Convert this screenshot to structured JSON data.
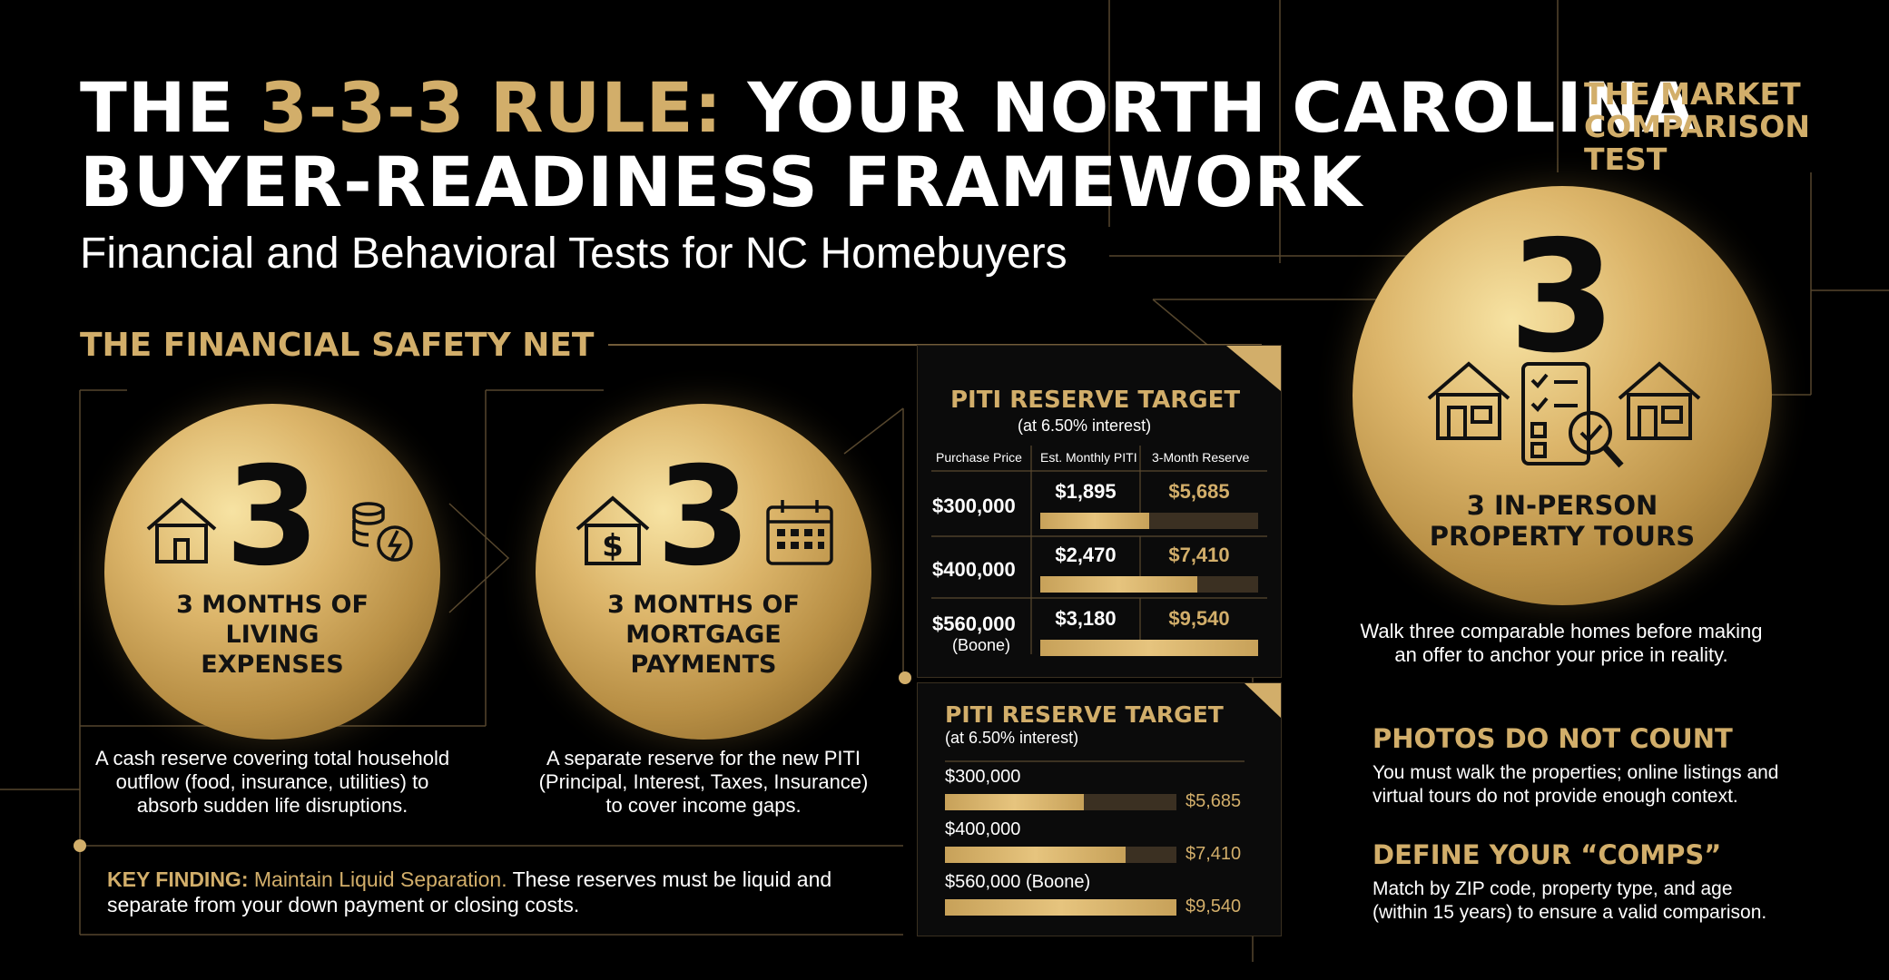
{
  "header": {
    "title_part1": "THE ",
    "title_highlight": "3-3-3 RULE:",
    "title_part2": " YOUR NORTH CAROLINA",
    "title_line2": "BUYER-READINESS FRAMEWORK",
    "subtitle": "Financial and Behavioral Tests for NC Homebuyers"
  },
  "financial": {
    "heading": "THE FINANCIAL SAFETY NET",
    "cards": [
      {
        "number": "3",
        "label_lines": [
          "3 MONTHS OF",
          "LIVING",
          "EXPENSES"
        ],
        "icons": [
          "house-icon",
          "coins-bolt-icon"
        ],
        "description_lines": [
          "A cash reserve covering total household",
          "outflow (food, insurance, utilities) to",
          "absorb sudden life disruptions."
        ]
      },
      {
        "number": "3",
        "label_lines": [
          "3 MONTHS OF",
          "MORTGAGE",
          "PAYMENTS"
        ],
        "icons": [
          "house-dollar-icon",
          "calendar-icon"
        ],
        "description_lines": [
          "A separate reserve for the new PITI",
          "(Principal, Interest, Taxes, Insurance)",
          "to cover income gaps."
        ]
      }
    ],
    "key_finding": {
      "label": "KEY FINDING:",
      "emphasis": "Maintain Liquid Separation.",
      "text_line1": " These reserves must be liquid and",
      "text_line2": "separate from your down payment or closing costs."
    }
  },
  "piti_table": {
    "title": "PITI RESERVE TARGET",
    "subtitle": "(at 6.50% interest)",
    "columns": [
      "Purchase Price",
      "Est. Monthly PITI",
      "3-Month Reserve"
    ],
    "rows": [
      {
        "price": "$300,000",
        "price_note": "",
        "monthly": "$1,895",
        "reserve": "$5,685",
        "fill": 0.5
      },
      {
        "price": "$400,000",
        "price_note": "",
        "monthly": "$2,470",
        "reserve": "$7,410",
        "fill": 0.72
      },
      {
        "price": "$560,000",
        "price_note": "(Boone)",
        "monthly": "$3,180",
        "reserve": "$9,540",
        "fill": 1.0
      }
    ]
  },
  "piti_bars": {
    "title": "PITI RESERVE TARGET",
    "subtitle": "(at 6.50% interest)",
    "rows": [
      {
        "label": "$300,000",
        "value": "$5,685",
        "fill": 0.6
      },
      {
        "label": "$400,000",
        "value": "$7,410",
        "fill": 0.78
      },
      {
        "label": "$560,000 (Boone)",
        "value": "$9,540",
        "fill": 1.0
      }
    ]
  },
  "market": {
    "heading_lines": [
      "THE MARKET",
      "COMPARISON",
      "TEST"
    ],
    "number": "3",
    "label_lines": [
      "3 IN-PERSON",
      "PROPERTY TOURS"
    ],
    "icons": [
      "house-icon",
      "checklist-magnifier-icon",
      "house-icon"
    ],
    "description_lines": [
      "Walk three comparable homes before making",
      "an offer to anchor your price in reality."
    ],
    "tips": [
      {
        "heading": "PHOTOS DO NOT COUNT",
        "lines": [
          "You must walk the properties; online listings and",
          "virtual tours do not provide enough context."
        ]
      },
      {
        "heading": "DEFINE YOUR “COMPS”",
        "lines": [
          "Match by ZIP code, property type, and age",
          "(within 15 years) to ensure a valid comparison."
        ]
      }
    ]
  },
  "colors": {
    "gold": "#d2ae6a",
    "background": "#000000",
    "bar_track": "#3b3022"
  }
}
